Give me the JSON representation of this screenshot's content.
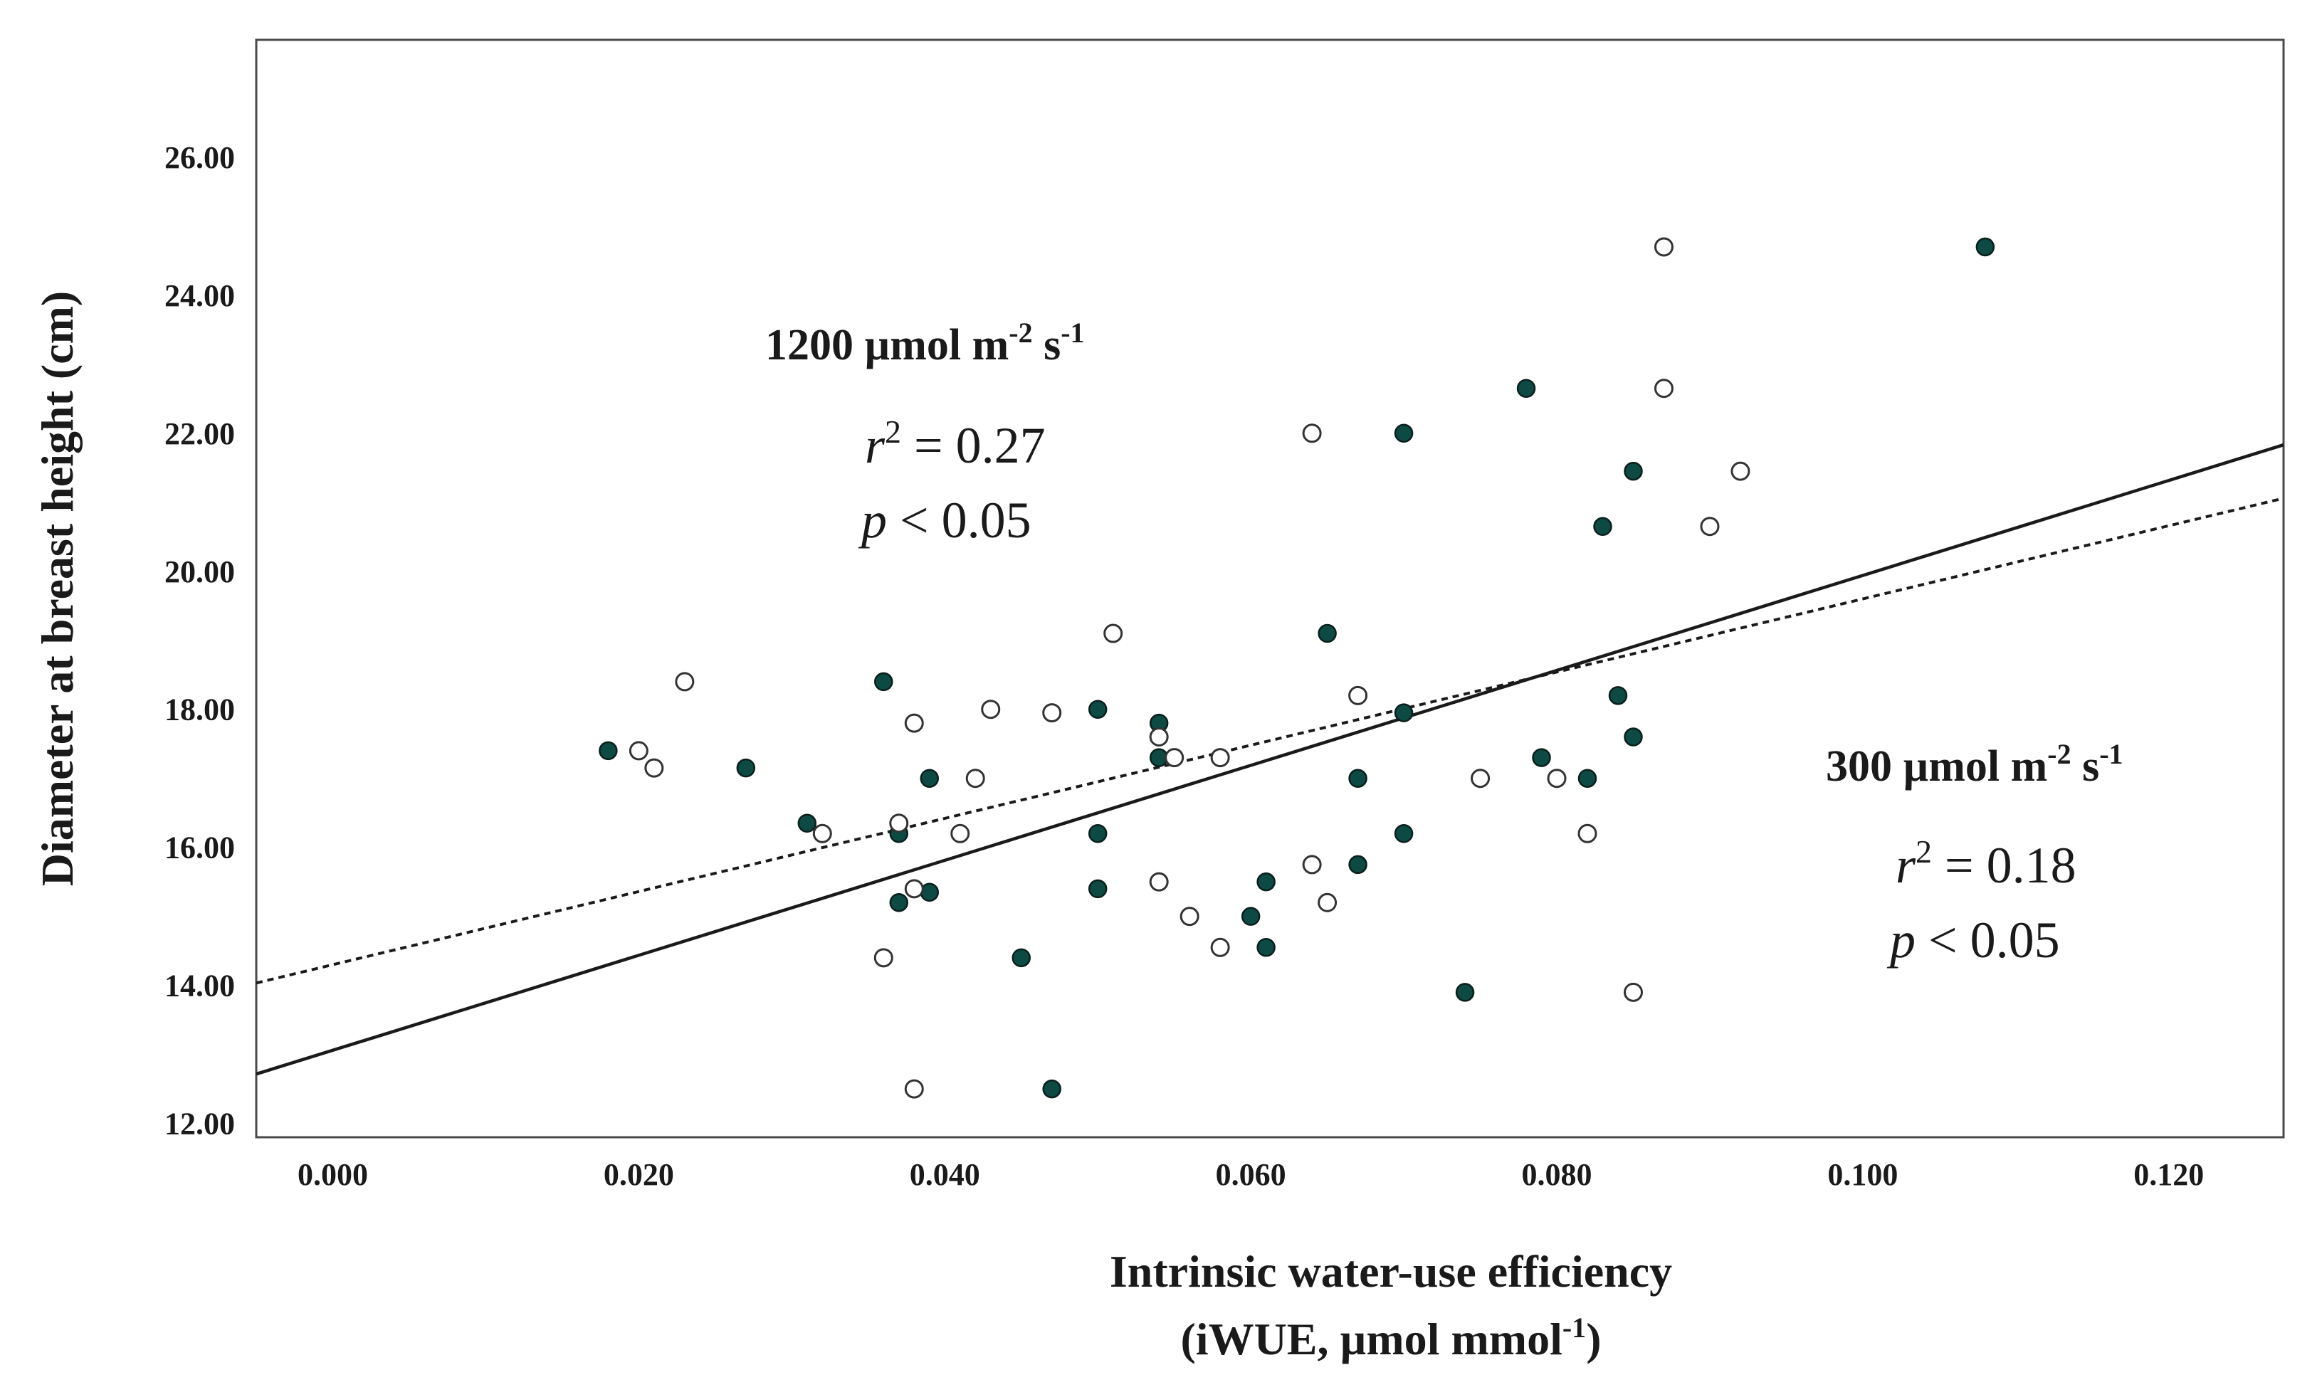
{
  "chart_data": {
    "type": "scatter",
    "title": "",
    "xlabel_line1": "Intrinsic water-use efficiency",
    "xlabel_line2_pre": "(iWUE, µmol mmol",
    "xlabel_line2_sup": "-1",
    "xlabel_line2_post": ")",
    "ylabel": "Diameter at breast height (cm)",
    "xlim": [
      -0.005,
      0.1275
    ],
    "ylim": [
      11.8,
      27.7
    ],
    "grid": false,
    "x_ticks": [
      {
        "value": 0.0,
        "label": "0.000"
      },
      {
        "value": 0.02,
        "label": "0.020"
      },
      {
        "value": 0.04,
        "label": "0.040"
      },
      {
        "value": 0.06,
        "label": "0.060"
      },
      {
        "value": 0.08,
        "label": "0.080"
      },
      {
        "value": 0.1,
        "label": "0.100"
      },
      {
        "value": 0.12,
        "label": "0.120"
      }
    ],
    "y_ticks": [
      {
        "value": 12,
        "label": "12.00"
      },
      {
        "value": 14,
        "label": "14.00"
      },
      {
        "value": 16,
        "label": "16.00"
      },
      {
        "value": 18,
        "label": "18.00"
      },
      {
        "value": 20,
        "label": "20.00"
      },
      {
        "value": 22,
        "label": "22.00"
      },
      {
        "value": 24,
        "label": "24.00"
      },
      {
        "value": 26,
        "label": "26.00"
      }
    ],
    "series": [
      {
        "name": "1200 µmol m-2 s-1",
        "marker": "filled-circle",
        "color": "#0d4a43",
        "fit": {
          "intercept": 13.06,
          "slope": 68.8,
          "style": "solid",
          "r2": 0.27,
          "p": "< 0.05"
        },
        "points": [
          [
            0.018,
            17.4
          ],
          [
            0.027,
            17.15
          ],
          [
            0.031,
            16.35
          ],
          [
            0.036,
            18.4
          ],
          [
            0.037,
            16.2
          ],
          [
            0.037,
            15.2
          ],
          [
            0.039,
            17.0
          ],
          [
            0.039,
            15.35
          ],
          [
            0.045,
            14.4
          ],
          [
            0.047,
            12.5
          ],
          [
            0.05,
            18.0
          ],
          [
            0.05,
            16.2
          ],
          [
            0.05,
            15.4
          ],
          [
            0.054,
            17.8
          ],
          [
            0.054,
            17.3
          ],
          [
            0.06,
            15.0
          ],
          [
            0.061,
            15.5
          ],
          [
            0.061,
            14.55
          ],
          [
            0.065,
            19.1
          ],
          [
            0.067,
            17.0
          ],
          [
            0.067,
            15.75
          ],
          [
            0.07,
            22.0
          ],
          [
            0.07,
            17.95
          ],
          [
            0.07,
            16.2
          ],
          [
            0.074,
            13.9
          ],
          [
            0.078,
            22.65
          ],
          [
            0.079,
            17.3
          ],
          [
            0.082,
            17.0
          ],
          [
            0.083,
            20.65
          ],
          [
            0.084,
            18.2
          ],
          [
            0.085,
            21.45
          ],
          [
            0.085,
            17.6
          ],
          [
            0.108,
            24.7
          ]
        ]
      },
      {
        "name": "300 µmol m-2 s-1",
        "marker": "open-circle",
        "color": "#1a1a1a",
        "fit": {
          "intercept": 14.3,
          "slope": 53.0,
          "style": "dashed",
          "r2": 0.18,
          "p": "< 0.05"
        },
        "points": [
          [
            0.02,
            17.4
          ],
          [
            0.021,
            17.15
          ],
          [
            0.023,
            18.4
          ],
          [
            0.032,
            16.2
          ],
          [
            0.036,
            14.4
          ],
          [
            0.037,
            16.35
          ],
          [
            0.038,
            17.8
          ],
          [
            0.038,
            15.4
          ],
          [
            0.038,
            12.5
          ],
          [
            0.041,
            16.2
          ],
          [
            0.042,
            17.0
          ],
          [
            0.043,
            18.0
          ],
          [
            0.047,
            17.95
          ],
          [
            0.051,
            19.1
          ],
          [
            0.054,
            17.6
          ],
          [
            0.054,
            15.5
          ],
          [
            0.055,
            17.3
          ],
          [
            0.056,
            15.0
          ],
          [
            0.058,
            17.3
          ],
          [
            0.058,
            14.55
          ],
          [
            0.064,
            22.0
          ],
          [
            0.064,
            15.75
          ],
          [
            0.065,
            15.2
          ],
          [
            0.067,
            18.2
          ],
          [
            0.075,
            17.0
          ],
          [
            0.08,
            17.0
          ],
          [
            0.082,
            16.2
          ],
          [
            0.085,
            13.9
          ],
          [
            0.087,
            24.7
          ],
          [
            0.087,
            22.65
          ],
          [
            0.09,
            20.65
          ],
          [
            0.092,
            21.45
          ]
        ]
      }
    ],
    "annotations": {
      "high": {
        "head": "1200 µmol m",
        "sup1": "-2",
        "mid": " s",
        "sup2": "-1",
        "r_letter": "r",
        "r_sup": "2",
        "r_value": " = 0.27",
        "p_letter": "p",
        "p_value": " < 0.05"
      },
      "low": {
        "head": "300 µmol m",
        "sup1": "-2",
        "mid": " s",
        "sup2": "-1",
        "r_letter": "r",
        "r_sup": "2",
        "r_value": " = 0.18",
        "p_letter": "p",
        "p_value": " < 0.05"
      }
    }
  }
}
